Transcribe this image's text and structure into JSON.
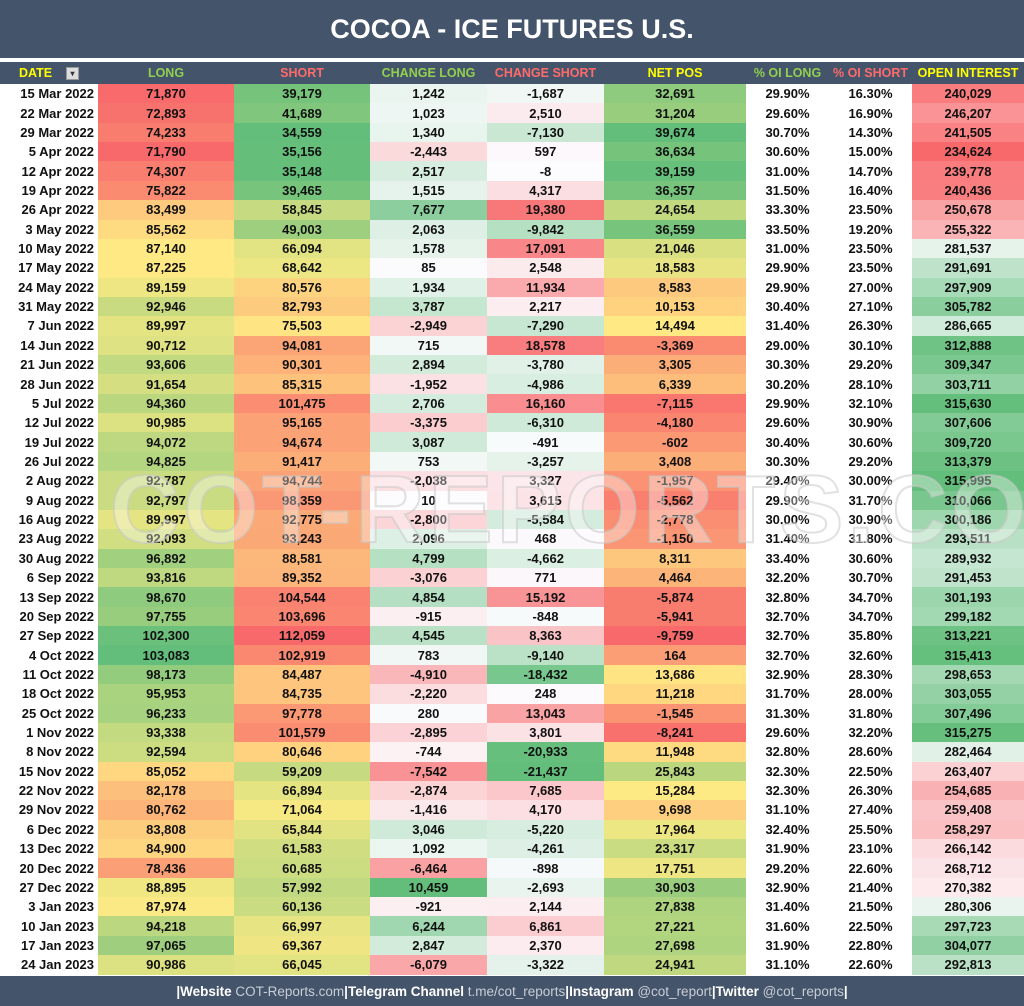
{
  "title": "COCOA - ICE FUTURES U.S.",
  "columns": [
    {
      "label": "DATE",
      "color": "#ffff00"
    },
    {
      "label": "LONG",
      "color": "#92d050"
    },
    {
      "label": "SHORT",
      "color": "#ff6b6b"
    },
    {
      "label": "CHANGE LONG",
      "color": "#92d050"
    },
    {
      "label": "CHANGE SHORT",
      "color": "#ff6b6b"
    },
    {
      "label": "NET POS",
      "color": "#ffff00"
    },
    {
      "label": "% OI LONG",
      "color": "#92d050"
    },
    {
      "label": "% OI SHORT",
      "color": "#ff6b6b"
    },
    {
      "label": "OPEN INTEREST",
      "color": "#ffff00"
    }
  ],
  "filter_icon": "filter-sort-icon",
  "rows": [
    [
      "15 Mar 2022",
      "71,870",
      "39,179",
      "1,242",
      "-1,687",
      "32,691",
      "29.90%",
      "16.30%",
      "240,029"
    ],
    [
      "22 Mar 2022",
      "72,893",
      "41,689",
      "1,023",
      "2,510",
      "31,204",
      "29.60%",
      "16.90%",
      "246,207"
    ],
    [
      "29 Mar 2022",
      "74,233",
      "34,559",
      "1,340",
      "-7,130",
      "39,674",
      "30.70%",
      "14.30%",
      "241,505"
    ],
    [
      "5 Apr 2022",
      "71,790",
      "35,156",
      "-2,443",
      "597",
      "36,634",
      "30.60%",
      "15.00%",
      "234,624"
    ],
    [
      "12 Apr 2022",
      "74,307",
      "35,148",
      "2,517",
      "-8",
      "39,159",
      "31.00%",
      "14.70%",
      "239,778"
    ],
    [
      "19 Apr 2022",
      "75,822",
      "39,465",
      "1,515",
      "4,317",
      "36,357",
      "31.50%",
      "16.40%",
      "240,436"
    ],
    [
      "26 Apr 2022",
      "83,499",
      "58,845",
      "7,677",
      "19,380",
      "24,654",
      "33.30%",
      "23.50%",
      "250,678"
    ],
    [
      "3 May 2022",
      "85,562",
      "49,003",
      "2,063",
      "-9,842",
      "36,559",
      "33.50%",
      "19.20%",
      "255,322"
    ],
    [
      "10 May 2022",
      "87,140",
      "66,094",
      "1,578",
      "17,091",
      "21,046",
      "31.00%",
      "23.50%",
      "281,537"
    ],
    [
      "17 May 2022",
      "87,225",
      "68,642",
      "85",
      "2,548",
      "18,583",
      "29.90%",
      "23.50%",
      "291,691"
    ],
    [
      "24 May 2022",
      "89,159",
      "80,576",
      "1,934",
      "11,934",
      "8,583",
      "29.90%",
      "27.00%",
      "297,909"
    ],
    [
      "31 May 2022",
      "92,946",
      "82,793",
      "3,787",
      "2,217",
      "10,153",
      "30.40%",
      "27.10%",
      "305,782"
    ],
    [
      "7 Jun 2022",
      "89,997",
      "75,503",
      "-2,949",
      "-7,290",
      "14,494",
      "31.40%",
      "26.30%",
      "286,665"
    ],
    [
      "14 Jun 2022",
      "90,712",
      "94,081",
      "715",
      "18,578",
      "-3,369",
      "29.00%",
      "30.10%",
      "312,888"
    ],
    [
      "21 Jun 2022",
      "93,606",
      "90,301",
      "2,894",
      "-3,780",
      "3,305",
      "30.30%",
      "29.20%",
      "309,347"
    ],
    [
      "28 Jun 2022",
      "91,654",
      "85,315",
      "-1,952",
      "-4,986",
      "6,339",
      "30.20%",
      "28.10%",
      "303,711"
    ],
    [
      "5 Jul 2022",
      "94,360",
      "101,475",
      "2,706",
      "16,160",
      "-7,115",
      "29.90%",
      "32.10%",
      "315,630"
    ],
    [
      "12 Jul 2022",
      "90,985",
      "95,165",
      "-3,375",
      "-6,310",
      "-4,180",
      "29.60%",
      "30.90%",
      "307,606"
    ],
    [
      "19 Jul 2022",
      "94,072",
      "94,674",
      "3,087",
      "-491",
      "-602",
      "30.40%",
      "30.60%",
      "309,720"
    ],
    [
      "26 Jul 2022",
      "94,825",
      "91,417",
      "753",
      "-3,257",
      "3,408",
      "30.30%",
      "29.20%",
      "313,379"
    ],
    [
      "2 Aug 2022",
      "92,787",
      "94,744",
      "-2,038",
      "3,327",
      "-1,957",
      "29.40%",
      "30.00%",
      "315,995"
    ],
    [
      "9 Aug 2022",
      "92,797",
      "98,359",
      "10",
      "3,615",
      "-5,562",
      "29.90%",
      "31.70%",
      "310,066"
    ],
    [
      "16 Aug 2022",
      "89,997",
      "92,775",
      "-2,800",
      "-5,584",
      "-2,778",
      "30.00%",
      "30.90%",
      "300,186"
    ],
    [
      "23 Aug 2022",
      "92,093",
      "93,243",
      "2,096",
      "468",
      "-1,150",
      "31.40%",
      "31.80%",
      "293,511"
    ],
    [
      "30 Aug 2022",
      "96,892",
      "88,581",
      "4,799",
      "-4,662",
      "8,311",
      "33.40%",
      "30.60%",
      "289,932"
    ],
    [
      "6 Sep 2022",
      "93,816",
      "89,352",
      "-3,076",
      "771",
      "4,464",
      "32.20%",
      "30.70%",
      "291,453"
    ],
    [
      "13 Sep 2022",
      "98,670",
      "104,544",
      "4,854",
      "15,192",
      "-5,874",
      "32.80%",
      "34.70%",
      "301,193"
    ],
    [
      "20 Sep 2022",
      "97,755",
      "103,696",
      "-915",
      "-848",
      "-5,941",
      "32.70%",
      "34.70%",
      "299,182"
    ],
    [
      "27 Sep 2022",
      "102,300",
      "112,059",
      "4,545",
      "8,363",
      "-9,759",
      "32.70%",
      "35.80%",
      "313,221"
    ],
    [
      "4 Oct 2022",
      "103,083",
      "102,919",
      "783",
      "-9,140",
      "164",
      "32.70%",
      "32.60%",
      "315,413"
    ],
    [
      "11 Oct 2022",
      "98,173",
      "84,487",
      "-4,910",
      "-18,432",
      "13,686",
      "32.90%",
      "28.30%",
      "298,653"
    ],
    [
      "18 Oct 2022",
      "95,953",
      "84,735",
      "-2,220",
      "248",
      "11,218",
      "31.70%",
      "28.00%",
      "303,055"
    ],
    [
      "25 Oct 2022",
      "96,233",
      "97,778",
      "280",
      "13,043",
      "-1,545",
      "31.30%",
      "31.80%",
      "307,496"
    ],
    [
      "1 Nov 2022",
      "93,338",
      "101,579",
      "-2,895",
      "3,801",
      "-8,241",
      "29.60%",
      "32.20%",
      "315,275"
    ],
    [
      "8 Nov 2022",
      "92,594",
      "80,646",
      "-744",
      "-20,933",
      "11,948",
      "32.80%",
      "28.60%",
      "282,464"
    ],
    [
      "15 Nov 2022",
      "85,052",
      "59,209",
      "-7,542",
      "-21,437",
      "25,843",
      "32.30%",
      "22.50%",
      "263,407"
    ],
    [
      "22 Nov 2022",
      "82,178",
      "66,894",
      "-2,874",
      "7,685",
      "15,284",
      "32.30%",
      "26.30%",
      "254,685"
    ],
    [
      "29 Nov 2022",
      "80,762",
      "71,064",
      "-1,416",
      "4,170",
      "9,698",
      "31.10%",
      "27.40%",
      "259,408"
    ],
    [
      "6 Dec 2022",
      "83,808",
      "65,844",
      "3,046",
      "-5,220",
      "17,964",
      "32.40%",
      "25.50%",
      "258,297"
    ],
    [
      "13 Dec 2022",
      "84,900",
      "61,583",
      "1,092",
      "-4,261",
      "23,317",
      "31.90%",
      "23.10%",
      "266,142"
    ],
    [
      "20 Dec 2022",
      "78,436",
      "60,685",
      "-6,464",
      "-898",
      "17,751",
      "29.20%",
      "22.60%",
      "268,712"
    ],
    [
      "27 Dec 2022",
      "88,895",
      "57,992",
      "10,459",
      "-2,693",
      "30,903",
      "32.90%",
      "21.40%",
      "270,382"
    ],
    [
      "3 Jan 2023",
      "87,974",
      "60,136",
      "-921",
      "2,144",
      "27,838",
      "31.40%",
      "21.50%",
      "280,306"
    ],
    [
      "10 Jan 2023",
      "94,218",
      "66,997",
      "6,244",
      "6,861",
      "27,221",
      "31.60%",
      "22.50%",
      "297,723"
    ],
    [
      "17 Jan 2023",
      "97,065",
      "69,367",
      "2,847",
      "2,370",
      "27,698",
      "31.90%",
      "22.80%",
      "304,077"
    ],
    [
      "24 Jan 2023",
      "90,986",
      "66,045",
      "-6,079",
      "-3,322",
      "24,941",
      "31.10%",
      "22.60%",
      "292,813"
    ]
  ],
  "watermark": "COT-REPORTS.COM",
  "footer": {
    "sep": "|",
    "website_label": "Website ",
    "website_link": "COT-Reports.com",
    "telegram_label": "Telegram Channel ",
    "telegram_link": "t.me/cot_reports",
    "instagram_label": "Instagram ",
    "instagram_link": "@cot_report",
    "twitter_label": "Twitter ",
    "twitter_link": "@cot_reports"
  },
  "scale_colors": {
    "red": "#f8696b",
    "yellow": "#ffeb84",
    "green": "#63be7b",
    "white": "#fcfcff"
  }
}
